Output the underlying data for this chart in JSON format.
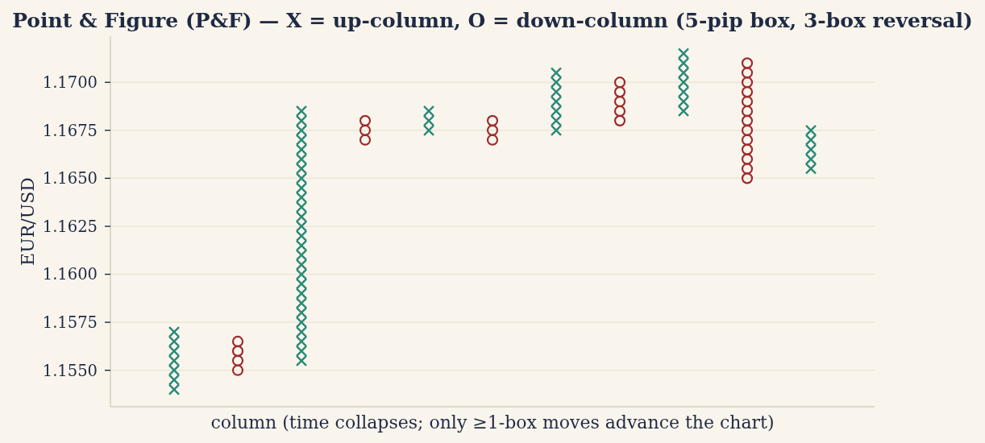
{
  "chart_data": {
    "type": "scatter",
    "title": "Point & Figure (P&F) — X = up-column, O = down-column (5-pip box, 3-box reversal)",
    "xlabel": "column (time collapses; only ≥1-box moves advance the chart)",
    "ylabel": "EUR/USD",
    "categories": [
      null,
      null,
      null,
      null,
      null,
      null,
      null,
      null,
      null,
      null,
      null
    ],
    "ylim": [
      1.1531,
      1.1724
    ],
    "yticks": [
      {
        "value": 1.155,
        "label": "1.1550"
      },
      1.1575,
      {
        "value": 1.16,
        "label": "1.1600"
      },
      1.1625,
      {
        "value": 1.165,
        "label": "1.1650"
      },
      1.1675,
      {
        "value": 1.17,
        "label": "1.1700"
      }
    ],
    "tick_labels": "y",
    "grid": "y",
    "series": [
      {
        "color": "#2a8a78",
        "marker": "cross",
        "values": [
          1.154,
          null,
          1.1555,
          null,
          1.1675,
          null,
          1.1675,
          null,
          1.1685,
          null,
          1.1655
        ]
      },
      {
        "color": "#2a8a78",
        "marker": "cross",
        "values": [
          1.1545,
          null,
          1.156,
          null,
          1.168,
          null,
          1.168,
          null,
          1.169,
          null,
          1.166
        ]
      },
      {
        "color": "#2a8a78",
        "marker": "cross",
        "values": [
          1.155,
          null,
          1.1565,
          null,
          1.1685,
          null,
          1.1685,
          null,
          1.1695,
          null,
          1.1665
        ]
      },
      {
        "color": "#2a8a78",
        "marker": "cross",
        "values": [
          1.1555,
          null,
          1.157,
          null,
          null,
          null,
          1.169,
          null,
          1.17,
          null,
          1.167
        ]
      },
      {
        "color": "#2a8a78",
        "marker": "cross",
        "values": [
          1.156,
          null,
          1.1575,
          null,
          null,
          null,
          1.1695,
          null,
          1.1705,
          null,
          1.1675
        ]
      },
      {
        "color": "#2a8a78",
        "marker": "cross",
        "values": [
          1.1565,
          null,
          1.158,
          null,
          null,
          null,
          1.17,
          null,
          1.171,
          null,
          null
        ]
      },
      {
        "color": "#2a8a78",
        "marker": "cross",
        "values": [
          1.157,
          null,
          1.1585,
          null,
          null,
          null,
          1.1705,
          null,
          1.1715,
          null,
          null
        ]
      },
      {
        "color": "#2a8a78",
        "marker": "cross",
        "values": [
          null,
          null,
          1.159,
          null,
          null,
          null,
          null,
          null,
          null,
          null,
          null
        ]
      },
      {
        "color": "#2a8a78",
        "marker": "cross",
        "values": [
          null,
          null,
          1.1595,
          null,
          null,
          null,
          null,
          null,
          null,
          null,
          null
        ]
      },
      {
        "color": "#2a8a78",
        "marker": "cross",
        "values": [
          null,
          null,
          1.16,
          null,
          null,
          null,
          null,
          null,
          null,
          null,
          null
        ]
      },
      {
        "color": "#2a8a78",
        "marker": "cross",
        "values": [
          null,
          null,
          1.1605,
          null,
          null,
          null,
          null,
          null,
          null,
          null,
          null
        ]
      },
      {
        "color": "#2a8a78",
        "marker": "cross",
        "values": [
          null,
          null,
          1.161,
          null,
          null,
          null,
          null,
          null,
          null,
          null,
          null
        ]
      },
      {
        "color": "#2a8a78",
        "marker": "cross",
        "values": [
          null,
          null,
          1.1615,
          null,
          null,
          null,
          null,
          null,
          null,
          null,
          null
        ]
      },
      {
        "color": "#2a8a78",
        "marker": "cross",
        "values": [
          null,
          null,
          1.162,
          null,
          null,
          null,
          null,
          null,
          null,
          null,
          null
        ]
      },
      {
        "color": "#2a8a78",
        "marker": "cross",
        "values": [
          null,
          null,
          1.1625,
          null,
          null,
          null,
          null,
          null,
          null,
          null,
          null
        ]
      },
      {
        "color": "#2a8a78",
        "marker": "cross",
        "values": [
          null,
          null,
          1.163,
          null,
          null,
          null,
          null,
          null,
          null,
          null,
          null
        ]
      },
      {
        "color": "#2a8a78",
        "marker": "cross",
        "values": [
          null,
          null,
          1.1635,
          null,
          null,
          null,
          null,
          null,
          null,
          null,
          null
        ]
      },
      {
        "color": "#2a8a78",
        "marker": "cross",
        "values": [
          null,
          null,
          1.164,
          null,
          null,
          null,
          null,
          null,
          null,
          null,
          null
        ]
      },
      {
        "color": "#2a8a78",
        "marker": "cross",
        "values": [
          null,
          null,
          1.1645,
          null,
          null,
          null,
          null,
          null,
          null,
          null,
          null
        ]
      },
      {
        "color": "#2a8a78",
        "marker": "cross",
        "values": [
          null,
          null,
          1.165,
          null,
          null,
          null,
          null,
          null,
          null,
          null,
          null
        ]
      },
      {
        "color": "#2a8a78",
        "marker": "cross",
        "values": [
          null,
          null,
          1.1655,
          null,
          null,
          null,
          null,
          null,
          null,
          null,
          null
        ]
      },
      {
        "color": "#2a8a78",
        "marker": "cross",
        "values": [
          null,
          null,
          1.166,
          null,
          null,
          null,
          null,
          null,
          null,
          null,
          null
        ]
      },
      {
        "color": "#2a8a78",
        "marker": "cross",
        "values": [
          null,
          null,
          1.1665,
          null,
          null,
          null,
          null,
          null,
          null,
          null,
          null
        ]
      },
      {
        "color": "#2a8a78",
        "marker": "cross",
        "values": [
          null,
          null,
          1.167,
          null,
          null,
          null,
          null,
          null,
          null,
          null,
          null
        ]
      },
      {
        "color": "#2a8a78",
        "marker": "cross",
        "values": [
          null,
          null,
          1.1675,
          null,
          null,
          null,
          null,
          null,
          null,
          null,
          null
        ]
      },
      {
        "color": "#2a8a78",
        "marker": "cross",
        "values": [
          null,
          null,
          1.168,
          null,
          null,
          null,
          null,
          null,
          null,
          null,
          null
        ]
      },
      {
        "color": "#2a8a78",
        "marker": "cross",
        "values": [
          null,
          null,
          1.1685,
          null,
          null,
          null,
          null,
          null,
          null,
          null,
          null
        ]
      },
      {
        "color": "#9e2b2b",
        "marker": "circle",
        "values": [
          null,
          1.155,
          null,
          1.167,
          null,
          1.167,
          null,
          1.168,
          null,
          1.165,
          null
        ]
      },
      {
        "color": "#9e2b2b",
        "marker": "circle",
        "values": [
          null,
          1.1555,
          null,
          1.1675,
          null,
          1.1675,
          null,
          1.1685,
          null,
          1.1655,
          null
        ]
      },
      {
        "color": "#9e2b2b",
        "marker": "circle",
        "values": [
          null,
          1.156,
          null,
          1.168,
          null,
          1.168,
          null,
          1.169,
          null,
          1.166,
          null
        ]
      },
      {
        "color": "#9e2b2b",
        "marker": "circle",
        "values": [
          null,
          1.1565,
          null,
          null,
          null,
          null,
          null,
          1.1695,
          null,
          1.1665,
          null
        ]
      },
      {
        "color": "#9e2b2b",
        "marker": "circle",
        "values": [
          null,
          null,
          null,
          null,
          null,
          null,
          null,
          1.17,
          null,
          1.167,
          null
        ]
      },
      {
        "color": "#9e2b2b",
        "marker": "circle",
        "values": [
          null,
          null,
          null,
          null,
          null,
          null,
          null,
          null,
          null,
          1.1675,
          null
        ]
      },
      {
        "color": "#9e2b2b",
        "marker": "circle",
        "values": [
          null,
          null,
          null,
          null,
          null,
          null,
          null,
          null,
          null,
          1.168,
          null
        ]
      },
      {
        "color": "#9e2b2b",
        "marker": "circle",
        "values": [
          null,
          null,
          null,
          null,
          null,
          null,
          null,
          null,
          null,
          1.1685,
          null
        ]
      },
      {
        "color": "#9e2b2b",
        "marker": "circle",
        "values": [
          null,
          null,
          null,
          null,
          null,
          null,
          null,
          null,
          null,
          1.169,
          null
        ]
      },
      {
        "color": "#9e2b2b",
        "marker": "circle",
        "values": [
          null,
          null,
          null,
          null,
          null,
          null,
          null,
          null,
          null,
          1.1695,
          null
        ]
      },
      {
        "color": "#9e2b2b",
        "marker": "circle",
        "values": [
          null,
          null,
          null,
          null,
          null,
          null,
          null,
          null,
          null,
          1.17,
          null
        ]
      },
      {
        "color": "#9e2b2b",
        "marker": "circle",
        "values": [
          null,
          null,
          null,
          null,
          null,
          null,
          null,
          null,
          null,
          1.1705,
          null
        ]
      },
      {
        "color": "#9e2b2b",
        "marker": "circle",
        "values": [
          null,
          null,
          null,
          null,
          null,
          null,
          null,
          null,
          null,
          1.171,
          null
        ]
      }
    ]
  }
}
